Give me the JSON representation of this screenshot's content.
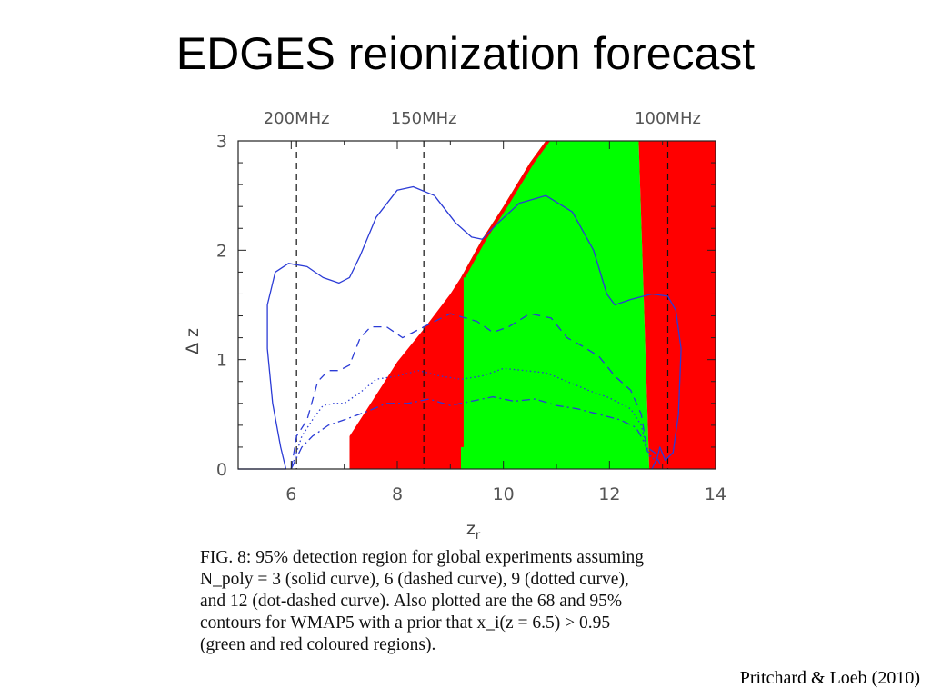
{
  "slide": {
    "title": "EDGES reionization forecast"
  },
  "chart_data": {
    "type": "line",
    "xlabel": "z",
    "xlabel_sub": "r",
    "ylabel": "Δ z",
    "xlim": [
      5,
      14
    ],
    "ylim": [
      0,
      3
    ],
    "xticks": [
      6,
      8,
      10,
      12,
      14
    ],
    "yticks": [
      0,
      1,
      2,
      3
    ],
    "frequency_markers": [
      {
        "label": "200MHz",
        "z": 6.1
      },
      {
        "label": "150MHz",
        "z": 8.5
      },
      {
        "label": "100MHz",
        "z": 13.1
      }
    ],
    "regions": [
      {
        "color": "#ff0000",
        "points": [
          [
            7.1,
            0
          ],
          [
            7.1,
            0.3
          ],
          [
            7.5,
            0.6
          ],
          [
            8,
            0.98
          ],
          [
            8.5,
            1.28
          ],
          [
            9,
            1.6
          ],
          [
            9.2,
            1.75
          ],
          [
            9.2,
            0
          ]
        ]
      },
      {
        "color": "#00ff00",
        "points": [
          [
            9.2,
            0
          ],
          [
            9.2,
            1.75
          ],
          [
            9.6,
            2.1
          ],
          [
            10,
            2.4
          ],
          [
            10.5,
            2.8
          ],
          [
            10.8,
            3
          ],
          [
            12.55,
            3
          ],
          [
            12.75,
            0
          ]
        ]
      },
      {
        "color": "#ff0000",
        "points": [
          [
            9.2,
            0.2
          ],
          [
            9.2,
            1.75
          ],
          [
            9.25,
            1.75
          ],
          [
            9.25,
            0.2
          ]
        ]
      },
      {
        "color": "#ff0000",
        "points": [
          [
            9.2,
            1.75
          ],
          [
            9.6,
            2.1
          ],
          [
            10,
            2.4
          ],
          [
            10.5,
            2.8
          ],
          [
            10.8,
            3
          ],
          [
            10.88,
            3
          ],
          [
            10.58,
            2.8
          ],
          [
            10.08,
            2.4
          ],
          [
            9.68,
            2.1
          ],
          [
            9.28,
            1.75
          ]
        ]
      },
      {
        "color": "#ff0000",
        "points": [
          [
            12.55,
            3
          ],
          [
            14,
            3
          ],
          [
            14,
            0
          ],
          [
            12.75,
            0
          ]
        ]
      }
    ],
    "series": [
      {
        "style": "solid",
        "color": "#2b3bd6",
        "points": [
          [
            5,
            0
          ],
          [
            5.9,
            0
          ],
          [
            5.8,
            0.2
          ],
          [
            5.65,
            0.6
          ],
          [
            5.55,
            1.1
          ],
          [
            5.55,
            1.5
          ],
          [
            5.7,
            1.8
          ],
          [
            5.95,
            1.88
          ],
          [
            6.3,
            1.85
          ],
          [
            6.6,
            1.75
          ],
          [
            6.9,
            1.7
          ],
          [
            7.1,
            1.75
          ],
          [
            7.3,
            1.95
          ],
          [
            7.6,
            2.3
          ],
          [
            8,
            2.55
          ],
          [
            8.3,
            2.58
          ],
          [
            8.7,
            2.5
          ],
          [
            9.1,
            2.25
          ],
          [
            9.4,
            2.12
          ],
          [
            9.6,
            2.1
          ],
          [
            9.9,
            2.25
          ],
          [
            10.3,
            2.43
          ],
          [
            10.8,
            2.5
          ],
          [
            11.3,
            2.35
          ],
          [
            11.7,
            2.0
          ],
          [
            11.95,
            1.6
          ],
          [
            12.1,
            1.5
          ],
          [
            12.4,
            1.55
          ],
          [
            12.8,
            1.6
          ],
          [
            13.1,
            1.58
          ],
          [
            13.25,
            1.45
          ],
          [
            13.35,
            1.1
          ],
          [
            13.3,
            0.5
          ],
          [
            13.2,
            0.15
          ],
          [
            13.05,
            0.08
          ],
          [
            12.95,
            0.2
          ],
          [
            12.9,
            0.1
          ],
          [
            12.8,
            0
          ]
        ]
      },
      {
        "style": "dashed",
        "color": "#2b3bd6",
        "points": [
          [
            6,
            0
          ],
          [
            6.1,
            0.3
          ],
          [
            6.3,
            0.45
          ],
          [
            6.5,
            0.8
          ],
          [
            6.7,
            0.9
          ],
          [
            6.9,
            0.9
          ],
          [
            7.1,
            0.95
          ],
          [
            7.3,
            1.2
          ],
          [
            7.5,
            1.3
          ],
          [
            7.8,
            1.3
          ],
          [
            8.1,
            1.2
          ],
          [
            8.5,
            1.3
          ],
          [
            9,
            1.42
          ],
          [
            9.5,
            1.35
          ],
          [
            9.8,
            1.25
          ],
          [
            10.1,
            1.3
          ],
          [
            10.5,
            1.42
          ],
          [
            10.9,
            1.38
          ],
          [
            11.2,
            1.2
          ],
          [
            11.5,
            1.12
          ],
          [
            11.8,
            1.03
          ],
          [
            12.1,
            0.85
          ],
          [
            12.4,
            0.72
          ],
          [
            12.6,
            0.5
          ],
          [
            12.7,
            0.2
          ],
          [
            12.85,
            0.15
          ],
          [
            12.95,
            0.05
          ]
        ]
      },
      {
        "style": "dotted",
        "color": "#2b3bd6",
        "points": [
          [
            6,
            0
          ],
          [
            6.2,
            0.3
          ],
          [
            6.4,
            0.45
          ],
          [
            6.6,
            0.58
          ],
          [
            6.8,
            0.6
          ],
          [
            7.0,
            0.6
          ],
          [
            7.3,
            0.7
          ],
          [
            7.6,
            0.82
          ],
          [
            8,
            0.85
          ],
          [
            8.4,
            0.9
          ],
          [
            8.8,
            0.85
          ],
          [
            9.2,
            0.82
          ],
          [
            9.6,
            0.85
          ],
          [
            10,
            0.92
          ],
          [
            10.4,
            0.9
          ],
          [
            10.8,
            0.88
          ],
          [
            11.2,
            0.8
          ],
          [
            11.6,
            0.72
          ],
          [
            12,
            0.65
          ],
          [
            12.4,
            0.55
          ],
          [
            12.6,
            0.4
          ],
          [
            12.7,
            0.2
          ],
          [
            12.8,
            0.1
          ],
          [
            12.9,
            0.08
          ]
        ]
      },
      {
        "style": "dotdash",
        "color": "#2b3bd6",
        "points": [
          [
            6,
            0
          ],
          [
            6.2,
            0.2
          ],
          [
            6.4,
            0.3
          ],
          [
            6.7,
            0.4
          ],
          [
            7,
            0.45
          ],
          [
            7.4,
            0.52
          ],
          [
            7.8,
            0.6
          ],
          [
            8.2,
            0.6
          ],
          [
            8.6,
            0.64
          ],
          [
            9,
            0.58
          ],
          [
            9.4,
            0.62
          ],
          [
            9.8,
            0.66
          ],
          [
            10.2,
            0.62
          ],
          [
            10.6,
            0.64
          ],
          [
            11,
            0.58
          ],
          [
            11.4,
            0.55
          ],
          [
            11.8,
            0.5
          ],
          [
            12.2,
            0.45
          ],
          [
            12.5,
            0.38
          ],
          [
            12.65,
            0.25
          ],
          [
            12.75,
            0.12
          ],
          [
            12.85,
            0.1
          ]
        ]
      }
    ]
  },
  "caption": {
    "lines": [
      "FIG. 8: 95% detection region for global experiments assuming",
      "N_poly = 3 (solid curve), 6 (dashed curve), 9 (dotted curve),",
      "and 12 (dot-dashed curve). Also plotted are the 68 and 95%",
      "contours for WMAP5 with a prior that x_i(z = 6.5) > 0.95",
      "(green and red coloured regions)."
    ]
  },
  "credit": "Pritchard & Loeb (2010)"
}
